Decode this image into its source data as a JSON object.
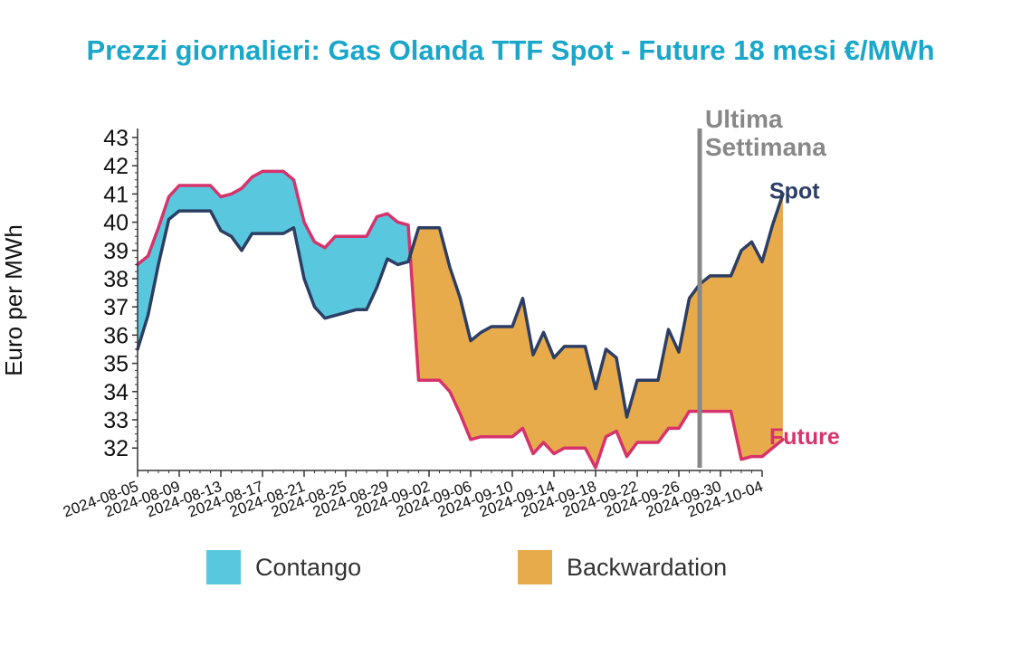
{
  "title": "Prezzi giornalieri: Gas Olanda TTF Spot - Future 18 mesi €/MWh",
  "chart_data": {
    "type": "area",
    "title": "Prezzi giornalieri: Gas Olanda TTF Spot - Future 18 mesi €/MWh",
    "ylabel": "Euro per MWh",
    "xlabel": "",
    "ylim": [
      31.2,
      43.3
    ],
    "yticks": [
      32,
      33,
      34,
      35,
      36,
      37,
      38,
      39,
      40,
      41,
      42,
      43
    ],
    "xlim": [
      "2024-08-05",
      "2024-10-04"
    ],
    "xticks": [
      "2024-08-05",
      "2024-08-09",
      "2024-08-13",
      "2024-08-17",
      "2024-08-21",
      "2024-08-25",
      "2024-08-29",
      "2024-09-02",
      "2024-09-06",
      "2024-09-10",
      "2024-09-14",
      "2024-09-18",
      "2024-09-22",
      "2024-09-26",
      "2024-09-30",
      "2024-10-04"
    ],
    "series": [
      {
        "name": "Spot",
        "color": "#2c3e63",
        "points": [
          [
            "2024-08-05",
            35.5
          ],
          [
            "2024-08-06",
            36.7
          ],
          [
            "2024-08-07",
            38.5
          ],
          [
            "2024-08-08",
            40.1
          ],
          [
            "2024-08-09",
            40.4
          ],
          [
            "2024-08-12",
            40.4
          ],
          [
            "2024-08-13",
            39.7
          ],
          [
            "2024-08-14",
            39.5
          ],
          [
            "2024-08-15",
            39.0
          ],
          [
            "2024-08-16",
            39.6
          ],
          [
            "2024-08-19",
            39.6
          ],
          [
            "2024-08-20",
            39.8
          ],
          [
            "2024-08-21",
            38.0
          ],
          [
            "2024-08-22",
            37.0
          ],
          [
            "2024-08-23",
            36.6
          ],
          [
            "2024-08-26",
            36.9
          ],
          [
            "2024-08-27",
            36.9
          ],
          [
            "2024-08-28",
            37.7
          ],
          [
            "2024-08-29",
            38.7
          ],
          [
            "2024-08-30",
            38.5
          ],
          [
            "2024-08-31",
            38.6
          ],
          [
            "2024-09-01",
            39.8
          ],
          [
            "2024-09-02",
            39.8
          ],
          [
            "2024-09-03",
            39.8
          ],
          [
            "2024-09-04",
            38.4
          ],
          [
            "2024-09-05",
            37.3
          ],
          [
            "2024-09-06",
            35.8
          ],
          [
            "2024-09-07",
            36.1
          ],
          [
            "2024-09-08",
            36.3
          ],
          [
            "2024-09-10",
            36.3
          ],
          [
            "2024-09-11",
            37.3
          ],
          [
            "2024-09-12",
            35.3
          ],
          [
            "2024-09-13",
            36.1
          ],
          [
            "2024-09-14",
            35.2
          ],
          [
            "2024-09-15",
            35.6
          ],
          [
            "2024-09-17",
            35.6
          ],
          [
            "2024-09-18",
            34.1
          ],
          [
            "2024-09-19",
            35.5
          ],
          [
            "2024-09-20",
            35.2
          ],
          [
            "2024-09-21",
            33.1
          ],
          [
            "2024-09-22",
            34.4
          ],
          [
            "2024-09-24",
            34.4
          ],
          [
            "2024-09-25",
            36.2
          ],
          [
            "2024-09-26",
            35.4
          ],
          [
            "2024-09-27",
            37.3
          ],
          [
            "2024-09-28",
            37.8
          ],
          [
            "2024-09-29",
            38.1
          ],
          [
            "2024-10-01",
            38.1
          ],
          [
            "2024-10-02",
            39.0
          ],
          [
            "2024-10-03",
            39.3
          ],
          [
            "2024-10-04",
            38.6
          ],
          [
            "2024-10-05",
            39.9
          ],
          [
            "2024-10-06",
            41.0
          ]
        ]
      },
      {
        "name": "Future",
        "color": "#d6336c",
        "points": [
          [
            "2024-08-05",
            38.5
          ],
          [
            "2024-08-06",
            38.8
          ],
          [
            "2024-08-07",
            39.8
          ],
          [
            "2024-08-08",
            40.9
          ],
          [
            "2024-08-09",
            41.3
          ],
          [
            "2024-08-12",
            41.3
          ],
          [
            "2024-08-13",
            40.9
          ],
          [
            "2024-08-14",
            41.0
          ],
          [
            "2024-08-15",
            41.2
          ],
          [
            "2024-08-16",
            41.6
          ],
          [
            "2024-08-17",
            41.8
          ],
          [
            "2024-08-19",
            41.8
          ],
          [
            "2024-08-20",
            41.5
          ],
          [
            "2024-08-21",
            40.0
          ],
          [
            "2024-08-22",
            39.3
          ],
          [
            "2024-08-23",
            39.1
          ],
          [
            "2024-08-24",
            39.5
          ],
          [
            "2024-08-27",
            39.5
          ],
          [
            "2024-08-28",
            40.2
          ],
          [
            "2024-08-29",
            40.3
          ],
          [
            "2024-08-30",
            40.0
          ],
          [
            "2024-08-31",
            39.9
          ],
          [
            "2024-09-01",
            34.4
          ],
          [
            "2024-09-02",
            34.4
          ],
          [
            "2024-09-03",
            34.4
          ],
          [
            "2024-09-04",
            34.0
          ],
          [
            "2024-09-05",
            33.2
          ],
          [
            "2024-09-06",
            32.3
          ],
          [
            "2024-09-07",
            32.4
          ],
          [
            "2024-09-10",
            32.4
          ],
          [
            "2024-09-11",
            32.7
          ],
          [
            "2024-09-12",
            31.8
          ],
          [
            "2024-09-13",
            32.2
          ],
          [
            "2024-09-14",
            31.8
          ],
          [
            "2024-09-15",
            32.0
          ],
          [
            "2024-09-17",
            32.0
          ],
          [
            "2024-09-18",
            31.3
          ],
          [
            "2024-09-19",
            32.4
          ],
          [
            "2024-09-20",
            32.6
          ],
          [
            "2024-09-21",
            31.7
          ],
          [
            "2024-09-22",
            32.2
          ],
          [
            "2024-09-24",
            32.2
          ],
          [
            "2024-09-25",
            32.7
          ],
          [
            "2024-09-26",
            32.7
          ],
          [
            "2024-09-27",
            33.3
          ],
          [
            "2024-10-01",
            33.3
          ],
          [
            "2024-10-02",
            31.6
          ],
          [
            "2024-10-03",
            31.7
          ],
          [
            "2024-10-04",
            31.7
          ],
          [
            "2024-10-05",
            32.0
          ],
          [
            "2024-10-06",
            32.3
          ]
        ]
      }
    ],
    "fills": [
      {
        "name": "Contango",
        "color": "#59c8de"
      },
      {
        "name": "Backwardation",
        "color": "#e8ab4c"
      }
    ],
    "annotation": {
      "text": [
        "Ultima",
        "Settimana"
      ],
      "date": "2024-09-28",
      "color": "#888888"
    },
    "legend": "bottom",
    "grid": false
  },
  "legend": {
    "contango_label": "Contango",
    "contango_color": "#59c8de",
    "backwardation_label": "Backwardation",
    "backwardation_color": "#e8ab4c"
  }
}
